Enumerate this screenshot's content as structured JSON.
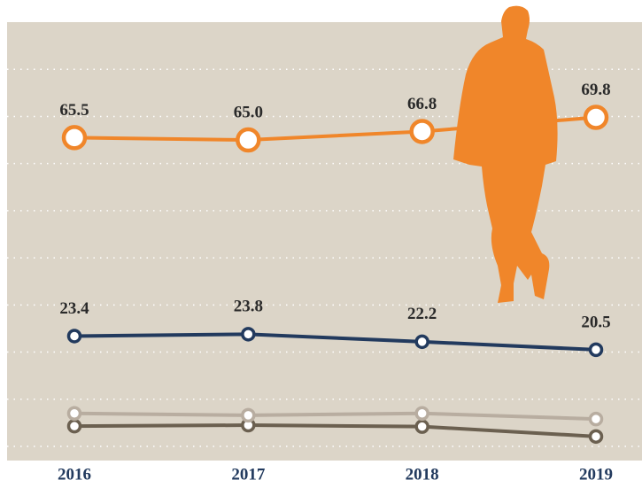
{
  "chart_data": {
    "type": "line",
    "x": [
      "2016",
      "2017",
      "2018",
      "2019"
    ],
    "series": [
      {
        "color": "#f0862a",
        "values": [
          65.5,
          65.0,
          66.8,
          69.8
        ],
        "value_labels": [
          "65.5",
          "65.0",
          "66.8",
          "69.8"
        ]
      },
      {
        "color": "#223a5e",
        "values": [
          23.4,
          23.8,
          22.2,
          20.5
        ],
        "value_labels": [
          "23.4",
          "23.8",
          "22.2",
          "20.5"
        ]
      },
      {
        "color": "#b8ada0",
        "values": [
          7.0,
          6.6,
          7.0,
          5.8
        ]
      },
      {
        "color": "#6b6050",
        "values": [
          4.3,
          4.5,
          4.2,
          2.1
        ]
      }
    ],
    "ylim": [
      0,
      90
    ],
    "yticks": [
      0,
      10,
      20,
      30,
      40,
      50,
      60,
      70,
      80
    ],
    "grid": true
  }
}
